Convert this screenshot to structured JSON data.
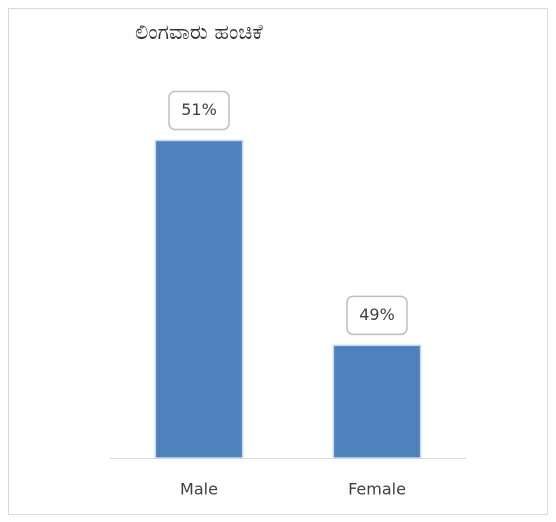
{
  "chart_data": {
    "type": "bar",
    "title": "ಲಿಂಗವಾರು ಹಂಚಿಕೆ",
    "categories": [
      "Male",
      "Female"
    ],
    "values": [
      51,
      49
    ],
    "value_labels": [
      "51%",
      "49%"
    ],
    "color": "#4f81bd",
    "ylim": [
      47.9,
      51.6
    ]
  }
}
